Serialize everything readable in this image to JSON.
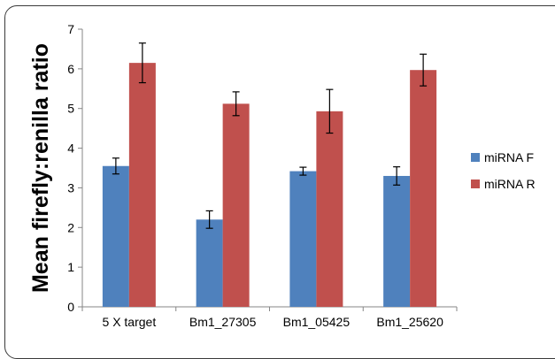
{
  "chart_data": {
    "type": "bar",
    "title": "",
    "xlabel": "",
    "ylabel": "Mean firefly:renilla ratio",
    "ylim": [
      0,
      7
    ],
    "yticks": [
      0,
      1,
      2,
      3,
      4,
      5,
      6,
      7
    ],
    "grid": false,
    "legend_position": "right",
    "categories": [
      "5 X target",
      "Bm1_27305",
      "Bm1_05425",
      "Bm1_25620"
    ],
    "series": [
      {
        "name": "miRNA F",
        "color": "#4f81bd",
        "values": [
          3.55,
          2.2,
          3.42,
          3.3
        ],
        "errors": [
          0.2,
          0.22,
          0.1,
          0.23
        ]
      },
      {
        "name": "miRNA R",
        "color": "#c0504d",
        "values": [
          6.15,
          5.12,
          4.93,
          5.97
        ],
        "errors": [
          0.5,
          0.3,
          0.55,
          0.4
        ]
      }
    ]
  }
}
